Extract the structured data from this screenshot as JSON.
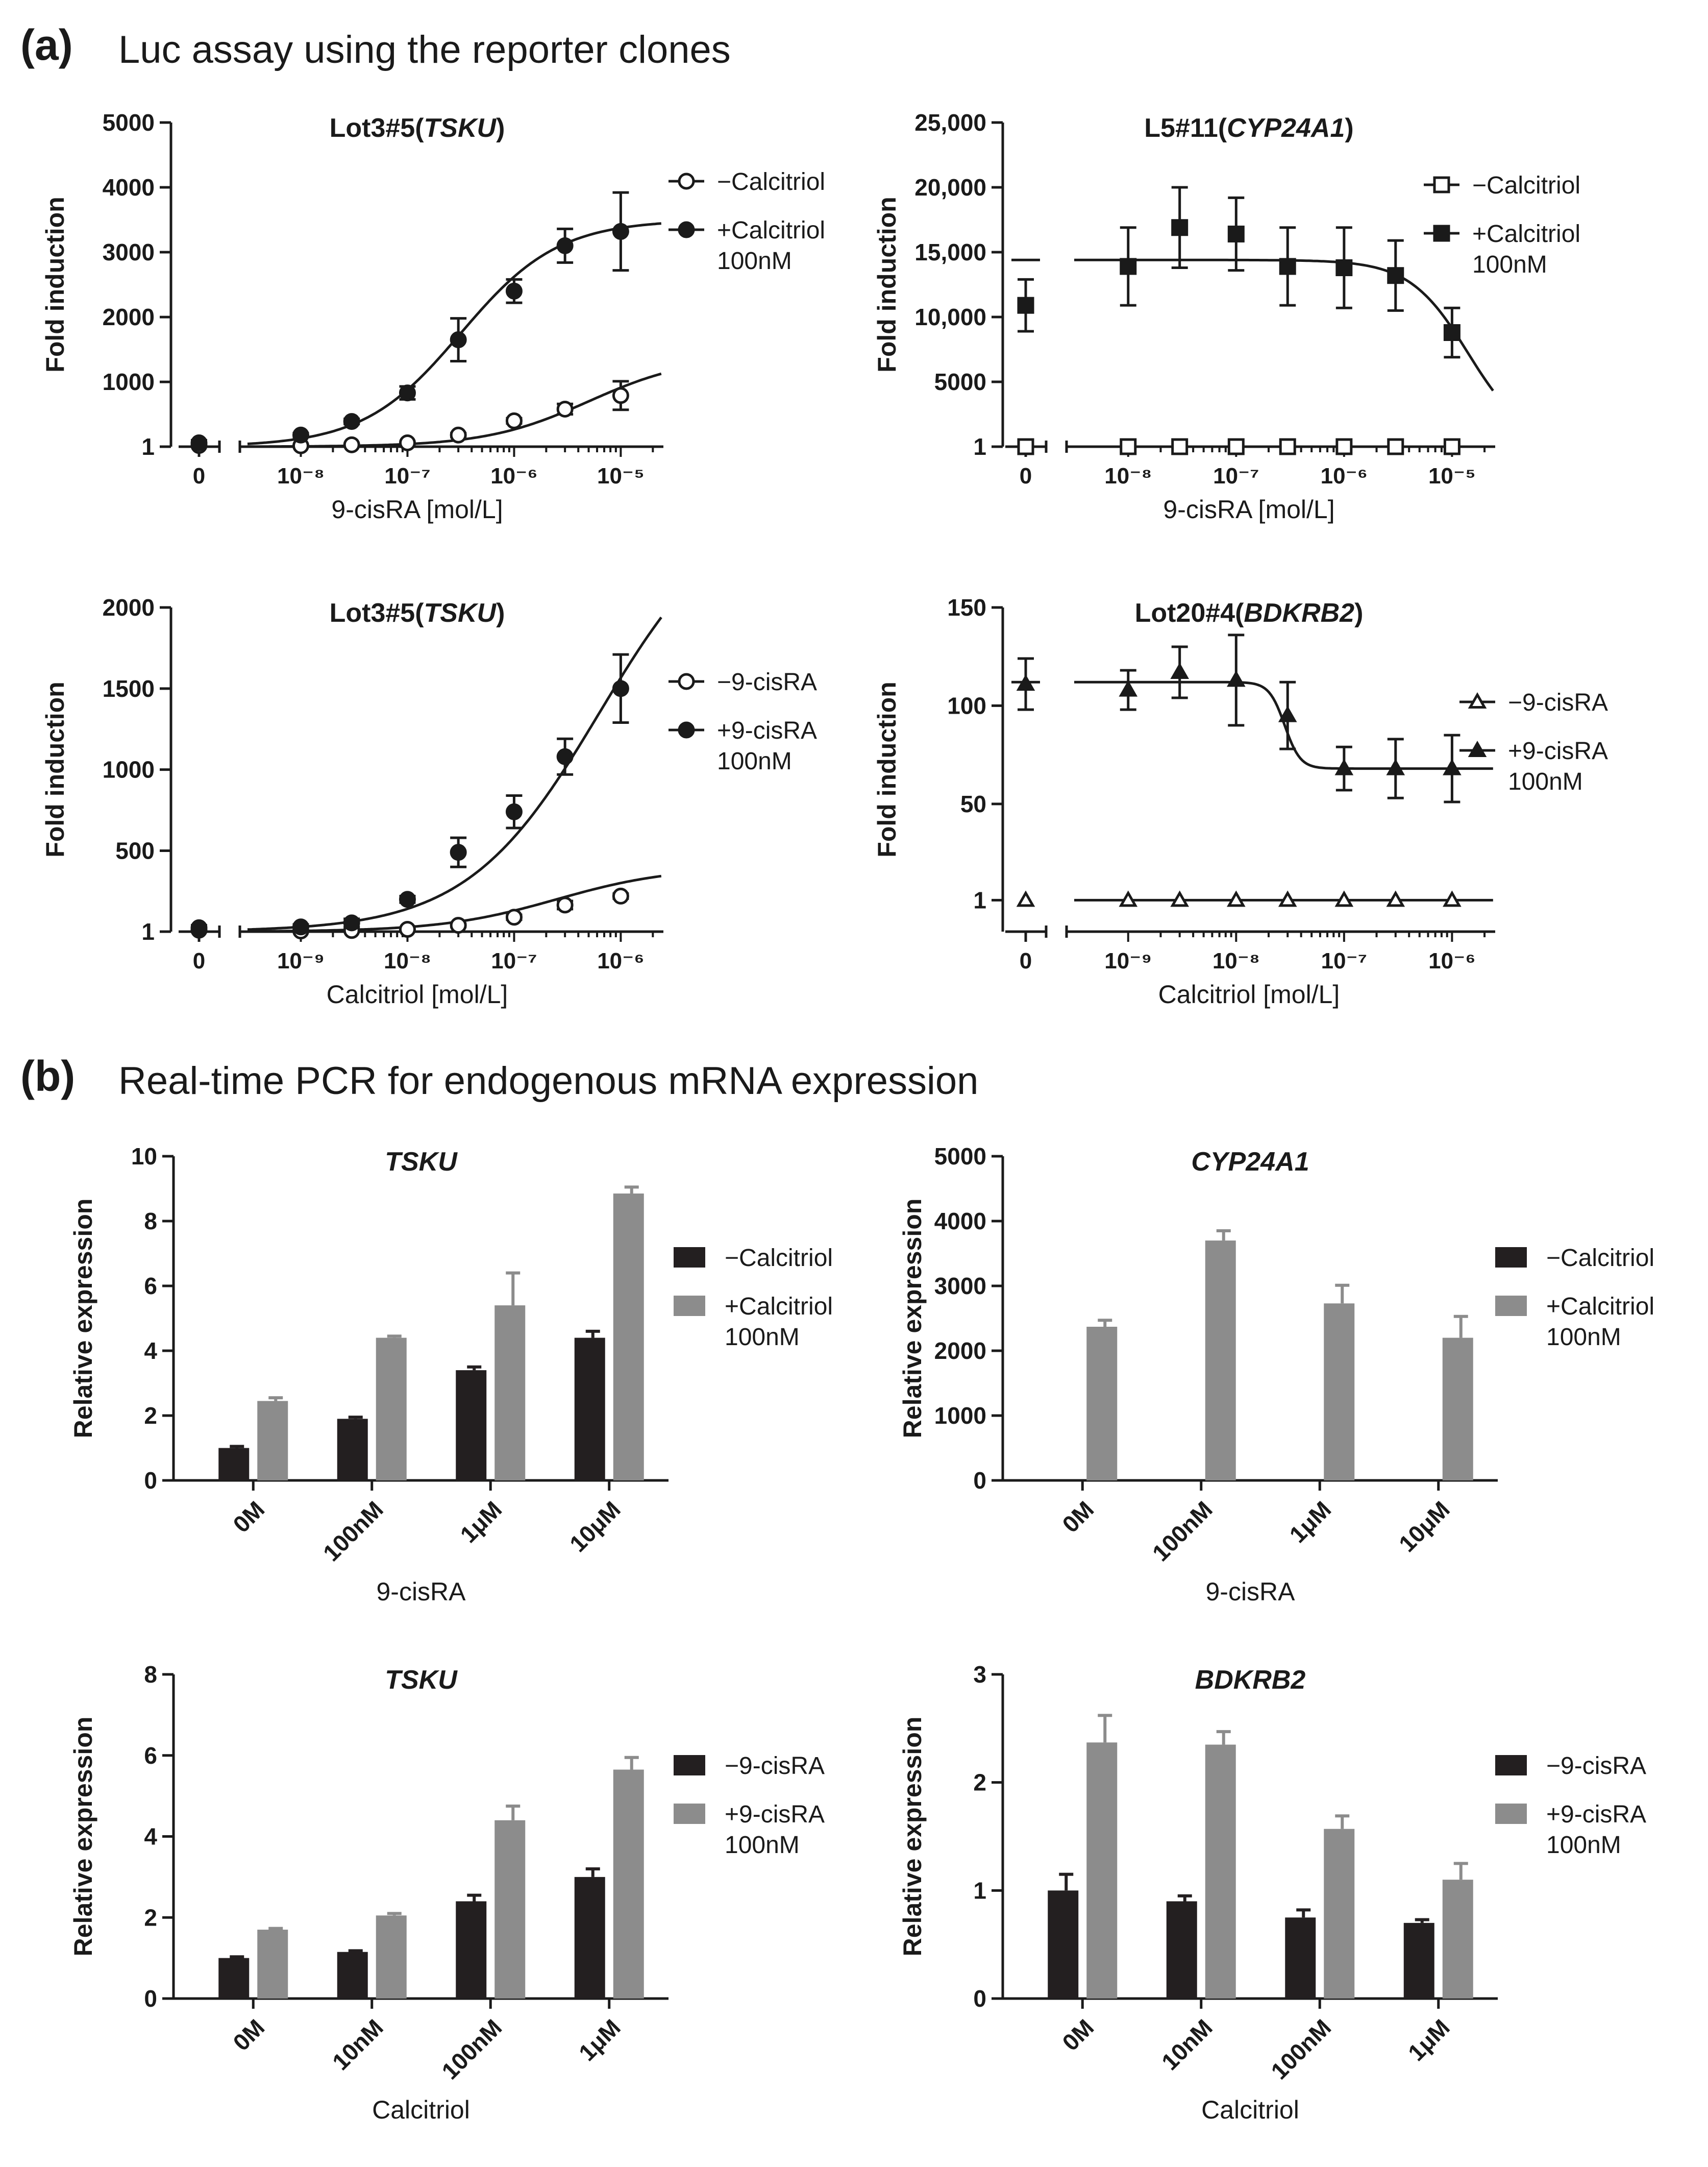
{
  "panel_a": {
    "label": "(a)",
    "title": "Luc assay using the reporter clones"
  },
  "panel_b": {
    "label": "(b)",
    "title": "Real-time PCR for endogenous mRNA expression"
  },
  "colors": {
    "black_bar": "#231f20",
    "gray_bar": "#8c8c8c",
    "line": "#1a1a1a"
  },
  "chart_data": [
    {
      "id": "a1",
      "type": "scatter",
      "scale": "log-x",
      "title": "Lot3#5(",
      "title_italic": "TSKU",
      "title_end": ")",
      "xlabel": "9-cisRA [mol/L]",
      "ylabel": "Fold induction",
      "ylim": [
        1,
        5000
      ],
      "yticks": [
        "1",
        "1000",
        "2000",
        "3000",
        "4000",
        "5000"
      ],
      "ytick_values": [
        1,
        1000,
        2000,
        3000,
        4000,
        5000
      ],
      "xlim_log": [
        -8.5,
        -4.6
      ],
      "xticks": [
        {
          "exp": -8,
          "label": "10⁻⁸"
        },
        {
          "exp": -7,
          "label": "10⁻⁷"
        },
        {
          "exp": -6,
          "label": "10⁻⁶"
        },
        {
          "exp": -5,
          "label": "10⁻⁵"
        }
      ],
      "zero_label": "0",
      "x": [
        0,
        1e-08,
        3e-08,
        1e-07,
        3e-07,
        1e-06,
        3e-06,
        1e-05
      ],
      "series": [
        {
          "name": "−Calcitriol",
          "marker": "circle-open",
          "values": [
            20,
            15,
            30,
            60,
            180,
            400,
            580,
            790
          ],
          "errors": [
            20,
            10,
            10,
            20,
            30,
            40,
            80,
            220
          ],
          "curve": {
            "bottom": 1,
            "top": 1400,
            "logEC50": -5.3,
            "hill": 0.9
          }
        },
        {
          "name": "+Calcitriol",
          "name2": "100nM",
          "marker": "circle-filled",
          "values": [
            60,
            180,
            390,
            830,
            1650,
            2400,
            3100,
            3320
          ],
          "errors": [
            40,
            30,
            40,
            100,
            330,
            180,
            260,
            600
          ],
          "curve": {
            "bottom": 1,
            "top": 3500,
            "logEC50": -6.5,
            "hill": 0.95
          }
        }
      ]
    },
    {
      "id": "a2",
      "type": "scatter",
      "scale": "log-x",
      "title": "L5#11(",
      "title_italic": "CYP24A1",
      "title_end": ")",
      "xlabel": "9-cisRA [mol/L]",
      "ylabel": "Fold induction",
      "ylim": [
        1,
        25000
      ],
      "yticks": [
        "1",
        "5000",
        "10,000",
        "15,000",
        "20,000",
        "25,000"
      ],
      "ytick_values": [
        1,
        5000,
        10000,
        15000,
        20000,
        25000
      ],
      "xlim_log": [
        -8.5,
        -4.6
      ],
      "xticks": [
        {
          "exp": -8,
          "label": "10⁻⁸"
        },
        {
          "exp": -7,
          "label": "10⁻⁷"
        },
        {
          "exp": -6,
          "label": "10⁻⁶"
        },
        {
          "exp": -5,
          "label": "10⁻⁵"
        }
      ],
      "zero_label": "0",
      "x": [
        0,
        1e-08,
        3e-08,
        1e-07,
        3e-07,
        1e-06,
        3e-06,
        1e-05
      ],
      "series": [
        {
          "name": "−Calcitriol",
          "marker": "square-open",
          "values": [
            1,
            1,
            1,
            1,
            1,
            1,
            1,
            1
          ],
          "errors": [
            0,
            0,
            0,
            0,
            0,
            0,
            0,
            0
          ],
          "curve": {
            "flat": 1
          }
        },
        {
          "name": "+Calcitriol",
          "name2": "100nM",
          "marker": "square-filled",
          "values": [
            10900,
            13900,
            16900,
            16400,
            13900,
            13800,
            13200,
            8800
          ],
          "errors": [
            2000,
            3000,
            3100,
            2800,
            3000,
            3100,
            2700,
            1900
          ],
          "curve": {
            "bottom": 0,
            "top": 14400,
            "logIC50": -4.85,
            "hill": -1.6
          },
          "zero_line": 14400
        }
      ]
    },
    {
      "id": "a3",
      "type": "scatter",
      "scale": "log-x",
      "title": "Lot3#5(",
      "title_italic": "TSKU",
      "title_end": ")",
      "xlabel": "Calcitriol [mol/L]",
      "ylabel": "Fold induction",
      "ylim": [
        1,
        2000
      ],
      "yticks": [
        "1",
        "500",
        "1000",
        "1500",
        "2000"
      ],
      "ytick_values": [
        1,
        500,
        1000,
        1500,
        2000
      ],
      "xlim_log": [
        -9.5,
        -5.6
      ],
      "xticks": [
        {
          "exp": -9,
          "label": "10⁻⁹"
        },
        {
          "exp": -8,
          "label": "10⁻⁸"
        },
        {
          "exp": -7,
          "label": "10⁻⁷"
        },
        {
          "exp": -6,
          "label": "10⁻⁶"
        }
      ],
      "zero_label": "0",
      "x": [
        0,
        1e-09,
        3e-09,
        1e-08,
        3e-08,
        1e-07,
        3e-07,
        1e-06
      ],
      "series": [
        {
          "name": "−9-cisRA",
          "marker": "circle-open",
          "values": [
            10,
            5,
            8,
            15,
            40,
            90,
            165,
            220
          ],
          "errors": [
            10,
            5,
            5,
            8,
            10,
            15,
            25,
            15
          ],
          "curve": {
            "bottom": 1,
            "top": 400,
            "logEC50": -6.6,
            "hill": 0.8
          }
        },
        {
          "name": "+9-cisRA",
          "name2": "100nM",
          "marker": "circle-filled",
          "values": [
            25,
            30,
            55,
            200,
            490,
            740,
            1080,
            1500
          ],
          "errors": [
            15,
            15,
            25,
            20,
            90,
            100,
            110,
            210
          ],
          "curve": {
            "bottom": 1,
            "top": 2700,
            "logEC50": -6.2,
            "hill": 0.7
          }
        }
      ]
    },
    {
      "id": "a4",
      "type": "scatter",
      "scale": "log-x",
      "title": "Lot20#4(",
      "title_italic": "BDKRB2",
      "title_end": ")",
      "xlabel": "Calcitriol [mol/L]",
      "ylabel": "Fold induction",
      "ylim": [
        -15,
        150
      ],
      "yticks": [
        "1",
        "50",
        "100",
        "150"
      ],
      "ytick_values": [
        1,
        50,
        100,
        150
      ],
      "xlim_log": [
        -9.5,
        -5.6
      ],
      "xticks": [
        {
          "exp": -9,
          "label": "10⁻⁹"
        },
        {
          "exp": -8,
          "label": "10⁻⁸"
        },
        {
          "exp": -7,
          "label": "10⁻⁷"
        },
        {
          "exp": -6,
          "label": "10⁻⁶"
        }
      ],
      "zero_label": "0",
      "x": [
        0,
        1e-09,
        3e-09,
        1e-08,
        3e-08,
        1e-07,
        3e-07,
        1e-06
      ],
      "series": [
        {
          "name": "−9-cisRA",
          "marker": "triangle-open",
          "values": [
            1,
            1,
            1,
            1,
            1,
            1,
            1,
            1
          ],
          "errors": [
            0,
            0,
            0,
            0,
            0,
            0,
            0,
            0
          ],
          "curve": {
            "flat": 1
          }
        },
        {
          "name": "+9-cisRA",
          "name2": "100nM",
          "marker": "triangle-filled",
          "values": [
            111,
            108,
            117,
            113,
            95,
            68,
            68,
            68
          ],
          "errors": [
            13,
            10,
            13,
            23,
            17,
            11,
            15,
            17
          ],
          "curve": {
            "bottom": 68,
            "top": 112,
            "logIC50": -7.55,
            "hill": -6
          },
          "zero_line": 112
        }
      ]
    },
    {
      "id": "b1",
      "type": "bar",
      "title": "TSKU",
      "xlabel": "9-cisRA",
      "ylabel": "Relative expression",
      "categories": [
        "0M",
        "100nM",
        "1μM",
        "10μM"
      ],
      "ylim": [
        0,
        10
      ],
      "yticks": [
        "0",
        "2",
        "4",
        "6",
        "8",
        "10"
      ],
      "ytick_values": [
        0,
        2,
        4,
        6,
        8,
        10
      ],
      "series": [
        {
          "name": "−Calcitriol",
          "color": "black",
          "values": [
            1.0,
            1.9,
            3.4,
            4.4
          ],
          "errors": [
            0.05,
            0.05,
            0.1,
            0.2
          ]
        },
        {
          "name": "+Calcitriol",
          "name2": "100nM",
          "color": "gray",
          "values": [
            2.45,
            4.4,
            5.4,
            8.85
          ],
          "errors": [
            0.1,
            0.05,
            1.0,
            0.2
          ]
        }
      ]
    },
    {
      "id": "b2",
      "type": "bar",
      "title": "CYP24A1",
      "xlabel": "9-cisRA",
      "ylabel": "Relative expression",
      "categories": [
        "0M",
        "100nM",
        "1μM",
        "10μM"
      ],
      "ylim": [
        0,
        5000
      ],
      "yticks": [
        "0",
        "1000",
        "2000",
        "3000",
        "4000",
        "5000"
      ],
      "ytick_values": [
        0,
        1000,
        2000,
        3000,
        4000,
        5000
      ],
      "series": [
        {
          "name": "−Calcitriol",
          "color": "black",
          "values": [
            0,
            0,
            0,
            0
          ],
          "errors": [
            0,
            0,
            0,
            0
          ]
        },
        {
          "name": "+Calcitriol",
          "name2": "100nM",
          "color": "gray",
          "values": [
            2370,
            3700,
            2730,
            2200
          ],
          "errors": [
            100,
            150,
            280,
            330
          ]
        }
      ]
    },
    {
      "id": "b3",
      "type": "bar",
      "title": "TSKU",
      "xlabel": "Calcitriol",
      "ylabel": "Relative expression",
      "categories": [
        "0M",
        "10nM",
        "100nM",
        "1μM"
      ],
      "ylim": [
        0,
        8
      ],
      "yticks": [
        "0",
        "2",
        "4",
        "6",
        "8"
      ],
      "ytick_values": [
        0,
        2,
        4,
        6,
        8
      ],
      "series": [
        {
          "name": "−9-cisRA",
          "color": "black",
          "values": [
            1.0,
            1.15,
            2.4,
            3.0
          ],
          "errors": [
            0.03,
            0.03,
            0.15,
            0.2
          ]
        },
        {
          "name": "+9-cisRA",
          "name2": "100nM",
          "color": "gray",
          "values": [
            1.7,
            2.05,
            4.4,
            5.65
          ],
          "errors": [
            0.03,
            0.05,
            0.35,
            0.3
          ]
        }
      ]
    },
    {
      "id": "b4",
      "type": "bar",
      "title": "BDKRB2",
      "xlabel": "Calcitriol",
      "ylabel": "Relative expression",
      "categories": [
        "0M",
        "10nM",
        "100nM",
        "1μM"
      ],
      "ylim": [
        0,
        3
      ],
      "yticks": [
        "0",
        "1",
        "2",
        "3"
      ],
      "ytick_values": [
        0,
        1,
        2,
        3
      ],
      "series": [
        {
          "name": "−9-cisRA",
          "color": "black",
          "values": [
            1.0,
            0.9,
            0.75,
            0.7
          ],
          "errors": [
            0.15,
            0.05,
            0.07,
            0.03
          ]
        },
        {
          "name": "+9-cisRA",
          "name2": "100nM",
          "color": "gray",
          "values": [
            2.37,
            2.35,
            1.57,
            1.1
          ],
          "errors": [
            0.25,
            0.12,
            0.12,
            0.15
          ]
        }
      ]
    }
  ]
}
